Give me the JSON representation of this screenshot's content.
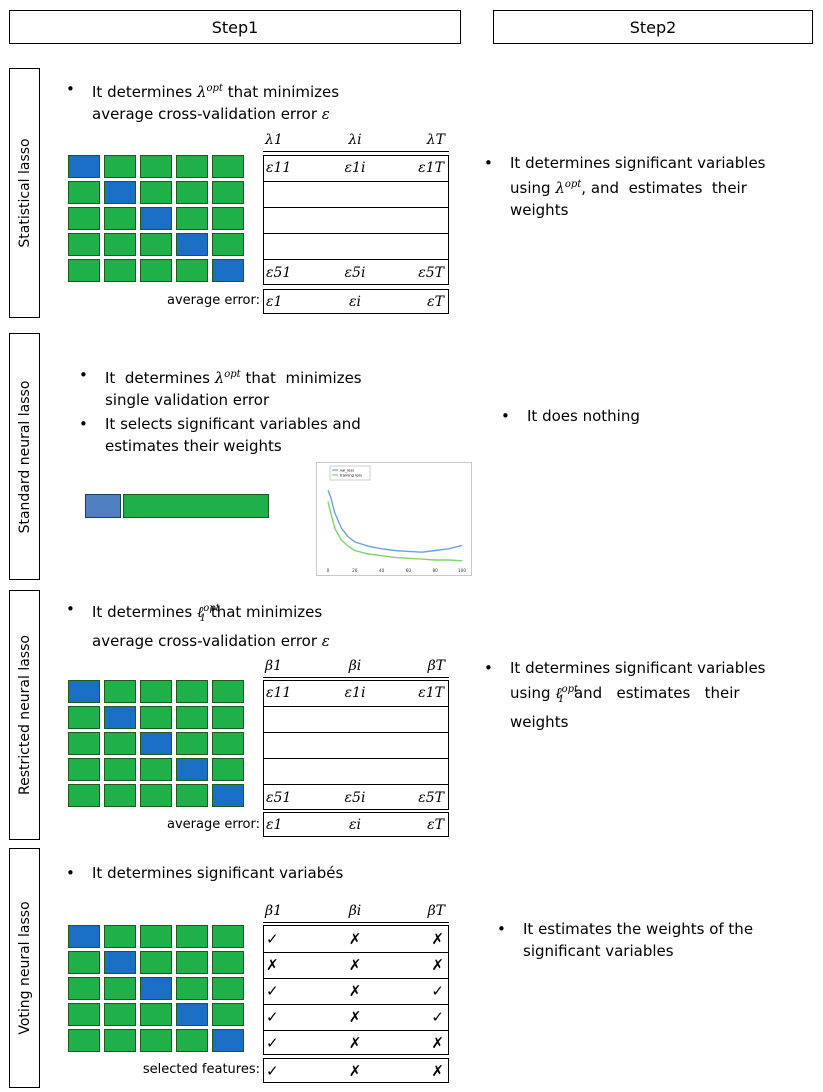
{
  "steps": {
    "step1": "Step1",
    "step2": "Step2"
  },
  "sections": {
    "statistical": {
      "label": "Statistical lasso",
      "step1_line1_pre": "It determines",
      "step1_line1_sym": "λ",
      "step1_line1_sup": "opt",
      "step1_line1_post": "that minimizes",
      "step1_line2": "average cross-validation error",
      "step1_line2_sym": "ε",
      "header": [
        "λ1",
        "λi",
        "λT"
      ],
      "row_first": [
        "ε11",
        "ε1i",
        "ε1T"
      ],
      "row_last": [
        "ε51",
        "ε5i",
        "ε5T"
      ],
      "avg_label": "average error:",
      "avg_row": [
        "ε1",
        "εi",
        "εT"
      ],
      "step2_line1": "It determines significant variables",
      "step2_line2_pre": "using",
      "step2_line2_post": ", and  estimates  their",
      "step2_line3": "weights"
    },
    "standard": {
      "label": "Standard neural lasso",
      "b1_pre": "It  determines",
      "b1_sym": "λ",
      "b1_sup": "opt",
      "b1_post": "that  minimizes",
      "b1_line2": "single validation error",
      "b2_line1": "It selects significant variables and",
      "b2_line2": "estimates their weights",
      "step2": "It does nothing",
      "legend": [
        "val_loss",
        "training loss"
      ],
      "ticks": [
        "0",
        "20",
        "40",
        "60",
        "80",
        "100"
      ]
    },
    "restricted": {
      "label": "Restricted neural lasso",
      "step1_line1_pre": "It determines",
      "step1_line1_sym": "ℓ",
      "step1_line1_sup": "opt",
      "step1_line1_sub": "1",
      "step1_line1_post": "that minimizes",
      "step1_line2": "average cross-validation error",
      "step1_line2_sym": "ε",
      "header": [
        "β1",
        "βi",
        "βT"
      ],
      "row_first": [
        "ε11",
        "ε1i",
        "ε1T"
      ],
      "row_last": [
        "ε51",
        "ε5i",
        "ε5T"
      ],
      "avg_label": "average error:",
      "avg_row": [
        "ε1",
        "εi",
        "εT"
      ],
      "step2_line1": "It determines significant variables",
      "step2_line2_pre": "using",
      "step2_line2_post": "and   estimates   their",
      "step2_line3": "weights"
    },
    "voting": {
      "label": "Voting neural lasso",
      "step1": "It determines significant variabés",
      "header": [
        "β1",
        "βi",
        "βT"
      ],
      "rows": [
        [
          "✓",
          "✗",
          "✗"
        ],
        [
          "✗",
          "✗",
          "✗"
        ],
        [
          "✓",
          "✗",
          "✓"
        ],
        [
          "✓",
          "✗",
          "✓"
        ],
        [
          "✓",
          "✗",
          "✗"
        ]
      ],
      "sel_label": "selected features:",
      "sel_row": [
        "✓",
        "✗",
        "✗"
      ],
      "step2_line1": "It estimates the weights of the",
      "step2_line2": "significant variables"
    }
  },
  "colors": {
    "green": "#1fb04a",
    "blue": "#1a6fc4",
    "val_loss": "#6fa3d6",
    "train_loss": "#7fd36a"
  },
  "validation_plot": {
    "val_loss": [
      [
        0,
        88
      ],
      [
        2,
        80
      ],
      [
        5,
        62
      ],
      [
        10,
        44
      ],
      [
        15,
        34
      ],
      [
        20,
        28
      ],
      [
        30,
        23
      ],
      [
        40,
        20
      ],
      [
        50,
        18
      ],
      [
        60,
        17
      ],
      [
        70,
        16
      ],
      [
        80,
        18
      ],
      [
        90,
        20
      ],
      [
        100,
        24
      ]
    ],
    "training_loss": [
      [
        0,
        75
      ],
      [
        2,
        62
      ],
      [
        5,
        44
      ],
      [
        10,
        30
      ],
      [
        15,
        23
      ],
      [
        20,
        18
      ],
      [
        30,
        14
      ],
      [
        40,
        12
      ],
      [
        50,
        10
      ],
      [
        60,
        9
      ],
      [
        70,
        8
      ],
      [
        80,
        7
      ],
      [
        90,
        7
      ],
      [
        100,
        6
      ]
    ]
  }
}
